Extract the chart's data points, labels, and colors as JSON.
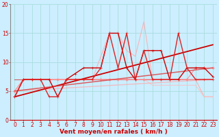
{
  "xlabel": "Vent moyen/en rafales ( km/h )",
  "bg_color": "#cceeff",
  "grid_color": "#aadddd",
  "xlim": [
    -0.5,
    23.5
  ],
  "ylim": [
    0,
    20
  ],
  "yticks": [
    0,
    5,
    10,
    15,
    20
  ],
  "xticks": [
    0,
    1,
    2,
    3,
    4,
    5,
    6,
    7,
    8,
    9,
    10,
    11,
    12,
    13,
    14,
    15,
    16,
    17,
    18,
    19,
    20,
    21,
    22,
    23
  ],
  "lines": [
    {
      "x": [
        0,
        1,
        2,
        3,
        4,
        5,
        6,
        7,
        8,
        9,
        10,
        11,
        12,
        13,
        14,
        15,
        16,
        17,
        18,
        19,
        20,
        21,
        22,
        23
      ],
      "y": [
        4,
        7,
        7,
        7,
        7,
        4,
        7,
        8,
        9,
        9,
        9,
        15,
        15,
        9,
        7,
        12,
        12,
        12,
        7,
        7,
        9,
        9,
        9,
        7.5
      ],
      "color": "#cc0000",
      "lw": 1.0,
      "marker": "+",
      "ms": 3.5,
      "alpha": 1.0,
      "zorder": 5
    },
    {
      "x": [
        0,
        1,
        2,
        3,
        4,
        5,
        6,
        7,
        8,
        9,
        10,
        11,
        12,
        13,
        14,
        15,
        16,
        17,
        18,
        19,
        20,
        21,
        22,
        23
      ],
      "y": [
        4,
        7,
        7,
        7,
        4,
        4,
        7,
        7,
        7,
        7,
        9,
        15,
        9,
        15,
        7,
        12,
        7,
        7,
        7,
        15,
        9,
        7,
        7,
        7
      ],
      "color": "#dd2222",
      "lw": 1.0,
      "marker": "+",
      "ms": 3.5,
      "alpha": 1.0,
      "zorder": 5
    },
    {
      "x": [
        0,
        1,
        2,
        3,
        4,
        5,
        6,
        7,
        8,
        9,
        10,
        11,
        12,
        13,
        14,
        15,
        16,
        17,
        18,
        19,
        20,
        21,
        22,
        23
      ],
      "y": [
        5,
        7,
        7,
        7,
        7,
        7,
        7,
        7,
        7,
        7,
        11,
        15,
        15,
        12,
        11,
        17,
        7,
        7,
        7,
        7,
        7,
        7,
        4,
        4
      ],
      "color": "#ffaaaa",
      "lw": 0.8,
      "marker": null,
      "ms": 0,
      "alpha": 0.85,
      "zorder": 3
    },
    {
      "x": [
        0,
        1,
        2,
        3,
        4,
        5,
        6,
        7,
        8,
        9,
        10,
        11,
        12,
        13,
        14,
        15,
        16,
        17,
        18,
        19,
        20,
        21,
        22,
        23
      ],
      "y": [
        5,
        7,
        7,
        7,
        7,
        7,
        7,
        7,
        7,
        7,
        7,
        7,
        7,
        7,
        7,
        7,
        6,
        6,
        6,
        6,
        6,
        6,
        4,
        4
      ],
      "color": "#ffbbbb",
      "lw": 0.8,
      "marker": null,
      "ms": 0,
      "alpha": 0.75,
      "zorder": 3
    },
    {
      "x": [
        0,
        1,
        2,
        3,
        4,
        5,
        6,
        7,
        8,
        9,
        10,
        11,
        12,
        13,
        14,
        15,
        16,
        17,
        18,
        19,
        20,
        21,
        22,
        23
      ],
      "y": [
        5,
        7,
        7,
        7,
        7,
        7,
        7,
        7,
        7,
        7,
        7,
        7,
        7,
        7,
        7,
        7,
        7,
        7,
        7,
        7,
        7,
        9,
        9,
        9
      ],
      "color": "#ff8888",
      "lw": 0.9,
      "marker": "D",
      "ms": 2.0,
      "alpha": 0.75,
      "zorder": 4
    },
    {
      "x": [
        0,
        23
      ],
      "y": [
        4,
        13
      ],
      "color": "#cc0000",
      "lw": 1.3,
      "marker": null,
      "ms": 0,
      "alpha": 1.0,
      "zorder": 4
    },
    {
      "x": [
        0,
        23
      ],
      "y": [
        5,
        9
      ],
      "color": "#dd4444",
      "lw": 1.1,
      "marker": null,
      "ms": 0,
      "alpha": 0.85,
      "zorder": 4
    },
    {
      "x": [
        0,
        23
      ],
      "y": [
        5,
        7
      ],
      "color": "#ffaaaa",
      "lw": 1.0,
      "marker": null,
      "ms": 0,
      "alpha": 0.7,
      "zorder": 3
    },
    {
      "x": [
        0,
        23
      ],
      "y": [
        7,
        7
      ],
      "color": "#cc0000",
      "lw": 0.8,
      "marker": null,
      "ms": 0,
      "alpha": 0.6,
      "zorder": 2
    }
  ],
  "xlabel_color": "#cc0000",
  "tick_color": "#cc0000",
  "xlabel_fontsize": 6.5,
  "tick_fontsize": 5.5,
  "left_spine_color": "#888888",
  "bottom_spine_color": "#cc0000"
}
